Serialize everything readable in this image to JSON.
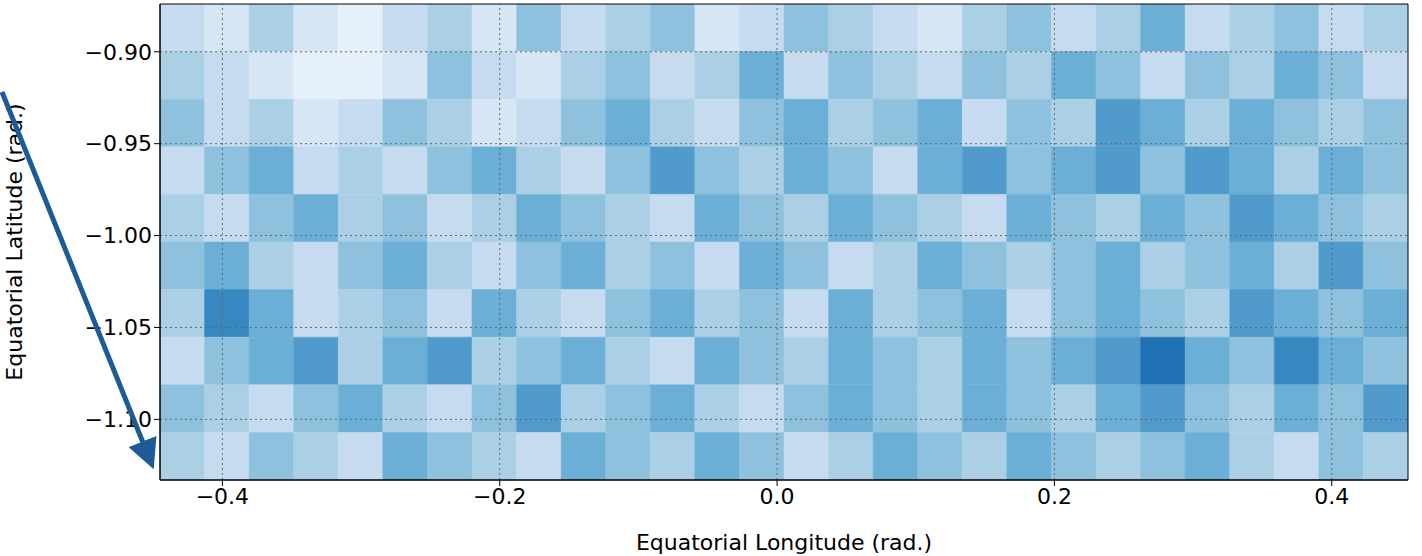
{
  "chart_data": {
    "type": "heatmap",
    "x_label": "Equatorial Longitude (rad.)",
    "y_label": "Equatorial Latitude (rad.)",
    "xlim": [
      -0.445,
      0.455
    ],
    "ylim": [
      -1.133,
      -0.874
    ],
    "xticks": [
      {
        "value": -0.4,
        "label": "−0.4"
      },
      {
        "value": -0.2,
        "label": "−0.2"
      },
      {
        "value": 0,
        "label": "0.0"
      },
      {
        "value": 0.2,
        "label": "0.2"
      },
      {
        "value": 0.4,
        "label": "0.4"
      }
    ],
    "yticks": [
      {
        "value": -0.9,
        "label": "−0.90"
      },
      {
        "value": -0.95,
        "label": "−0.95"
      },
      {
        "value": -1.0,
        "label": "−1.00"
      },
      {
        "value": -1.05,
        "label": "−1.05"
      },
      {
        "value": -1.1,
        "label": "−1.10"
      }
    ],
    "grid": true,
    "color_range": [
      0,
      1.2
    ],
    "cells": [
      [
        0.3,
        0.2,
        0.4,
        0.2,
        0.1,
        0.3,
        0.4,
        0.2,
        0.5,
        0.3,
        0.4,
        0.5,
        0.2,
        0.3,
        0.5,
        0.4,
        0.3,
        0.2,
        0.4,
        0.5,
        0.3,
        0.4,
        0.6,
        0.3,
        0.4,
        0.5,
        0.3,
        0.4
      ],
      [
        0.4,
        0.3,
        0.2,
        0.1,
        0.1,
        0.2,
        0.5,
        0.3,
        0.2,
        0.4,
        0.5,
        0.3,
        0.4,
        0.6,
        0.3,
        0.5,
        0.4,
        0.3,
        0.5,
        0.4,
        0.6,
        0.5,
        0.3,
        0.5,
        0.4,
        0.6,
        0.5,
        0.3
      ],
      [
        0.5,
        0.3,
        0.4,
        0.2,
        0.3,
        0.5,
        0.4,
        0.2,
        0.3,
        0.5,
        0.6,
        0.4,
        0.3,
        0.5,
        0.6,
        0.4,
        0.5,
        0.6,
        0.3,
        0.5,
        0.4,
        0.7,
        0.6,
        0.4,
        0.6,
        0.5,
        0.4,
        0.5
      ],
      [
        0.3,
        0.5,
        0.6,
        0.3,
        0.4,
        0.3,
        0.5,
        0.6,
        0.4,
        0.3,
        0.5,
        0.7,
        0.5,
        0.4,
        0.6,
        0.5,
        0.3,
        0.6,
        0.7,
        0.5,
        0.6,
        0.7,
        0.5,
        0.7,
        0.6,
        0.4,
        0.6,
        0.5
      ],
      [
        0.4,
        0.3,
        0.5,
        0.6,
        0.4,
        0.5,
        0.3,
        0.4,
        0.6,
        0.5,
        0.4,
        0.3,
        0.6,
        0.5,
        0.4,
        0.6,
        0.5,
        0.4,
        0.3,
        0.6,
        0.5,
        0.4,
        0.6,
        0.5,
        0.7,
        0.6,
        0.5,
        0.4
      ],
      [
        0.5,
        0.6,
        0.4,
        0.3,
        0.5,
        0.6,
        0.4,
        0.3,
        0.5,
        0.6,
        0.4,
        0.5,
        0.3,
        0.6,
        0.5,
        0.3,
        0.4,
        0.6,
        0.5,
        0.4,
        0.5,
        0.6,
        0.4,
        0.5,
        0.6,
        0.4,
        0.7,
        0.5
      ],
      [
        0.4,
        0.8,
        0.6,
        0.3,
        0.4,
        0.5,
        0.3,
        0.6,
        0.4,
        0.3,
        0.5,
        0.6,
        0.4,
        0.5,
        0.3,
        0.6,
        0.4,
        0.5,
        0.6,
        0.3,
        0.5,
        0.6,
        0.5,
        0.4,
        0.7,
        0.6,
        0.5,
        0.6
      ],
      [
        0.3,
        0.5,
        0.6,
        0.7,
        0.4,
        0.6,
        0.7,
        0.4,
        0.5,
        0.6,
        0.4,
        0.3,
        0.6,
        0.5,
        0.4,
        0.6,
        0.5,
        0.4,
        0.6,
        0.5,
        0.6,
        0.7,
        0.9,
        0.6,
        0.5,
        0.8,
        0.6,
        0.5
      ],
      [
        0.5,
        0.4,
        0.3,
        0.5,
        0.6,
        0.4,
        0.3,
        0.5,
        0.7,
        0.4,
        0.5,
        0.6,
        0.4,
        0.3,
        0.5,
        0.6,
        0.5,
        0.4,
        0.6,
        0.5,
        0.4,
        0.6,
        0.7,
        0.5,
        0.4,
        0.6,
        0.5,
        0.7
      ],
      [
        0.4,
        0.3,
        0.5,
        0.4,
        0.3,
        0.6,
        0.5,
        0.4,
        0.3,
        0.6,
        0.5,
        0.4,
        0.6,
        0.5,
        0.3,
        0.4,
        0.6,
        0.5,
        0.4,
        0.6,
        0.5,
        0.4,
        0.5,
        0.6,
        0.4,
        0.3,
        0.5,
        0.4
      ]
    ]
  }
}
